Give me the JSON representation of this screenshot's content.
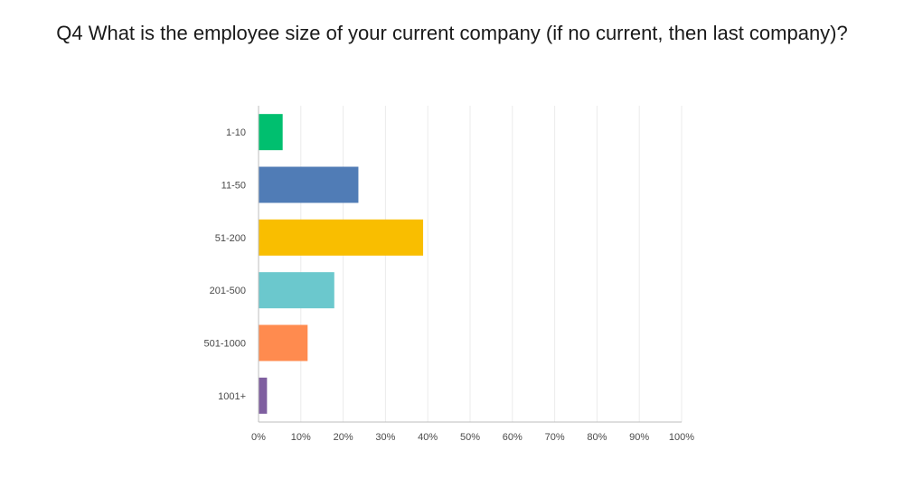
{
  "chart_data": {
    "type": "bar",
    "orientation": "horizontal",
    "title": "Q4 What is the employee size of your current company (if no current, then last company)?",
    "categories": [
      "1-10",
      "11-50",
      "51-200",
      "201-500",
      "501-1000",
      "1001+"
    ],
    "values": [
      5.7,
      23.6,
      38.9,
      17.9,
      11.6,
      2.0
    ],
    "colors": [
      "#00bf6f",
      "#507cb6",
      "#f9be00",
      "#6bc8cd",
      "#ff8b4f",
      "#7f5fa0"
    ],
    "x_ticks": [
      "0%",
      "10%",
      "20%",
      "30%",
      "40%",
      "50%",
      "60%",
      "70%",
      "80%",
      "90%",
      "100%"
    ],
    "xlim": [
      0,
      100
    ],
    "grid": true,
    "legend": "none"
  }
}
